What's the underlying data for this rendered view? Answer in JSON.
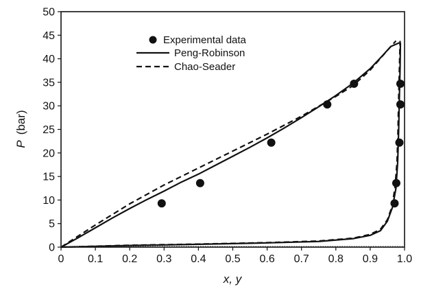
{
  "chart_data": {
    "type": "line",
    "xlabel": "x, y",
    "ylabel_symbol": "P",
    "ylabel_unit": "(bar)",
    "xlim": [
      0,
      1.0
    ],
    "ylim": [
      0,
      50
    ],
    "xticks": [
      "0",
      "0.1",
      "0.2",
      "0.3",
      "0.4",
      "0.5",
      "0.6",
      "0.7",
      "0.8",
      "0.9",
      "1.0"
    ],
    "yticks": [
      "0",
      "5",
      "10",
      "15",
      "20",
      "25",
      "30",
      "35",
      "40",
      "45",
      "50"
    ],
    "grid": false,
    "legend_position": "top-center",
    "legend": [
      {
        "name": "Experimental data",
        "style": "marker"
      },
      {
        "name": "Peng-Robinson",
        "style": "solid"
      },
      {
        "name": "Chao-Seader",
        "style": "dashed"
      }
    ],
    "series": [
      {
        "name": "Experimental data",
        "kind": "scatter",
        "points": [
          [
            0.293,
            9.3
          ],
          [
            0.405,
            13.6
          ],
          [
            0.612,
            22.2
          ],
          [
            0.775,
            30.3
          ],
          [
            0.853,
            34.7
          ],
          [
            0.971,
            9.3
          ],
          [
            0.976,
            13.6
          ],
          [
            0.985,
            22.2
          ],
          [
            0.988,
            30.3
          ],
          [
            0.988,
            34.7
          ]
        ]
      },
      {
        "name": "Peng-Robinson",
        "kind": "line",
        "style": "solid",
        "bubble_curve": [
          [
            0.0,
            0.0
          ],
          [
            0.05,
            2.0
          ],
          [
            0.1,
            4.1
          ],
          [
            0.15,
            6.2
          ],
          [
            0.2,
            8.2
          ],
          [
            0.25,
            10.1
          ],
          [
            0.3,
            11.9
          ],
          [
            0.35,
            13.8
          ],
          [
            0.4,
            15.5
          ],
          [
            0.45,
            17.4
          ],
          [
            0.5,
            19.3
          ],
          [
            0.55,
            21.2
          ],
          [
            0.6,
            23.2
          ],
          [
            0.65,
            25.3
          ],
          [
            0.7,
            27.5
          ],
          [
            0.75,
            29.8
          ],
          [
            0.8,
            32.2
          ],
          [
            0.85,
            34.8
          ],
          [
            0.9,
            37.9
          ],
          [
            0.93,
            40.2
          ],
          [
            0.96,
            42.6
          ],
          [
            0.985,
            43.4
          ]
        ],
        "dew_curve": [
          [
            0.0,
            0.0
          ],
          [
            0.2,
            0.35
          ],
          [
            0.4,
            0.6
          ],
          [
            0.6,
            0.9
          ],
          [
            0.75,
            1.2
          ],
          [
            0.85,
            1.8
          ],
          [
            0.9,
            2.5
          ],
          [
            0.93,
            3.5
          ],
          [
            0.95,
            5.5
          ],
          [
            0.965,
            8.5
          ],
          [
            0.975,
            12.5
          ],
          [
            0.98,
            18.0
          ],
          [
            0.983,
            25.0
          ],
          [
            0.985,
            32.0
          ],
          [
            0.987,
            38.0
          ],
          [
            0.988,
            43.4
          ]
        ]
      },
      {
        "name": "Chao-Seader",
        "kind": "line",
        "style": "dashed",
        "bubble_curve": [
          [
            0.0,
            0.0
          ],
          [
            0.1,
            4.7
          ],
          [
            0.2,
            9.2
          ],
          [
            0.3,
            13.2
          ],
          [
            0.4,
            16.8
          ],
          [
            0.5,
            20.4
          ],
          [
            0.6,
            24.0
          ],
          [
            0.7,
            27.8
          ],
          [
            0.8,
            32.0
          ],
          [
            0.85,
            34.3
          ],
          [
            0.9,
            37.6
          ],
          [
            0.93,
            40.1
          ],
          [
            0.96,
            42.6
          ],
          [
            0.975,
            43.8
          ]
        ],
        "dew_curve": [
          [
            0.0,
            0.0
          ],
          [
            0.2,
            0.4
          ],
          [
            0.4,
            0.65
          ],
          [
            0.6,
            0.95
          ],
          [
            0.75,
            1.3
          ],
          [
            0.85,
            1.9
          ],
          [
            0.9,
            2.7
          ],
          [
            0.93,
            3.8
          ],
          [
            0.95,
            5.8
          ],
          [
            0.963,
            8.5
          ],
          [
            0.972,
            12.5
          ],
          [
            0.978,
            18.0
          ],
          [
            0.981,
            25.0
          ],
          [
            0.983,
            32.0
          ],
          [
            0.985,
            38.0
          ],
          [
            0.987,
            43.8
          ]
        ]
      }
    ]
  }
}
